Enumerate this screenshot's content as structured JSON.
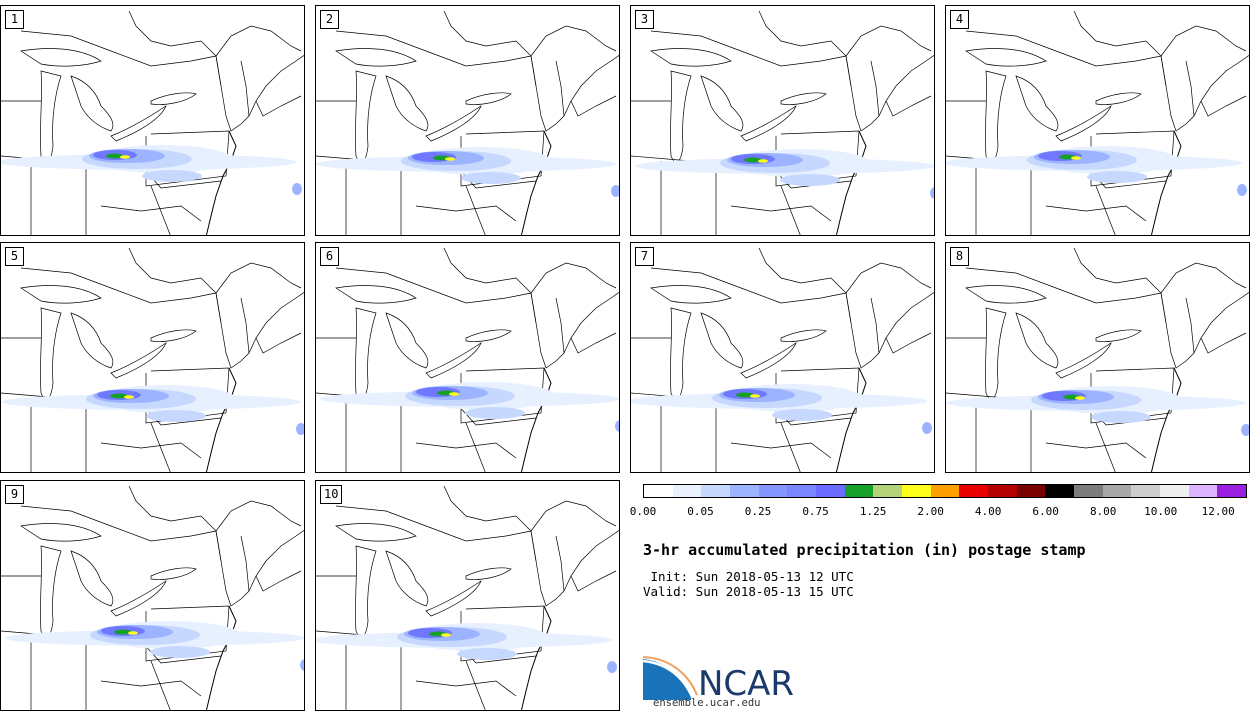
{
  "stamps": [
    "1",
    "2",
    "3",
    "4",
    "5",
    "6",
    "7",
    "8",
    "9",
    "10"
  ],
  "colorbar": {
    "colors": [
      "#ffffff",
      "#eaf2ff",
      "#c7d8ff",
      "#9cb3ff",
      "#8596ff",
      "#7a87ff",
      "#6b6bff",
      "#16a02a",
      "#b4d27a",
      "#ffff1e",
      "#ff9f00",
      "#e80000",
      "#b30000",
      "#7a0000",
      "#000000",
      "#7d7d7d",
      "#a8a8a8",
      "#cdcdcd",
      "#efefef",
      "#dcb4ff",
      "#9b1fe0"
    ],
    "tick_labels": [
      "0.00",
      "0.05",
      "0.25",
      "0.75",
      "1.25",
      "2.00",
      "4.00",
      "6.00",
      "8.00",
      "10.00",
      "12.00"
    ]
  },
  "title": "3-hr accumulated precipitation (in) postage stamp",
  "init_line": " Init: Sun 2018-05-13 12 UTC",
  "valid_line": "Valid: Sun 2018-05-13 15 UTC",
  "logo_text": "NCAR",
  "url": "ensemble.ucar.edu",
  "colors": {
    "precip_light": "#e6f0ff",
    "precip_mid": "#a8bcff",
    "precip_heavy": "#6f78ff",
    "green": "#16a02a",
    "yellow": "#ffff1e"
  }
}
